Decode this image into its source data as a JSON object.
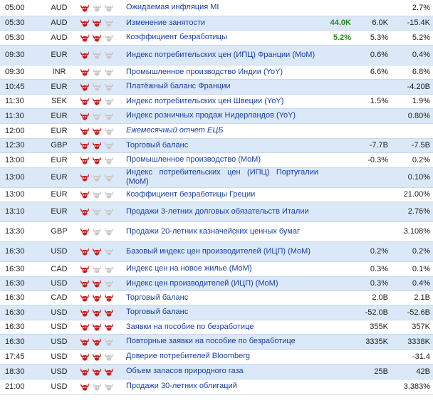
{
  "impact_colors": {
    "active": "#c81e1e",
    "inactive": "#c8c8c8"
  },
  "rows": [
    {
      "time": "05:00",
      "currency": "AUD",
      "impact": 1,
      "event": "Ожидаемая инфляция MI",
      "actual": "",
      "forecast": "",
      "previous": "2.7%"
    },
    {
      "time": "05:30",
      "currency": "AUD",
      "impact": 2,
      "event": "Изменение занятости",
      "actual": "44.0K",
      "forecast": "6.0K",
      "previous": "-15.4K"
    },
    {
      "time": "05:30",
      "currency": "AUD",
      "impact": 2,
      "event": "Коэффициент безработицы",
      "actual": "5.2%",
      "forecast": "5.3%",
      "previous": "5.2%"
    },
    {
      "time": "09:30",
      "currency": "EUR",
      "impact": 1,
      "event": "Индекс потребительских цен (ИПЦ) Франции (MoM)",
      "actual": "",
      "forecast": "0.6%",
      "previous": "0.4%"
    },
    {
      "time": "09:30",
      "currency": "INR",
      "impact": 1,
      "event": "Промышленное производство Индии (YoY)",
      "actual": "",
      "forecast": "6.6%",
      "previous": "6.8%"
    },
    {
      "time": "10:45",
      "currency": "EUR",
      "impact": 1,
      "event": "Платёжный баланс Франции",
      "actual": "",
      "forecast": "",
      "previous": "-4.20B"
    },
    {
      "time": "11:30",
      "currency": "SEK",
      "impact": 2,
      "event": "Индекс потребительских цен Швеции (YoY)",
      "actual": "",
      "forecast": "1.5%",
      "previous": "1.9%"
    },
    {
      "time": "11:30",
      "currency": "EUR",
      "impact": 1,
      "event": "Индекс розничных продаж Нидерландов (YoY)",
      "actual": "",
      "forecast": "",
      "previous": "0.80%"
    },
    {
      "time": "12:00",
      "currency": "EUR",
      "impact": 2,
      "event": "Ежемесячный отчет ЕЦБ",
      "actual": "",
      "forecast": "",
      "previous": "",
      "italic": true
    },
    {
      "time": "12:30",
      "currency": "GBP",
      "impact": 2,
      "event": "Торговый баланс",
      "actual": "",
      "forecast": "-7.7B",
      "previous": "-7.5B"
    },
    {
      "time": "13:00",
      "currency": "EUR",
      "impact": 2,
      "event": "Промышленное производство (MoM)",
      "actual": "",
      "forecast": "-0.3%",
      "previous": "0.2%"
    },
    {
      "time": "13:00",
      "currency": "EUR",
      "impact": 1,
      "event": "Индекс потребительских цен (ИПЦ) Португалии (MoM)",
      "actual": "",
      "forecast": "",
      "previous": "0.10%"
    },
    {
      "time": "13:00",
      "currency": "EUR",
      "impact": 1,
      "event": "Коэффициент безработицы Греции",
      "actual": "",
      "forecast": "",
      "previous": "21.00%"
    },
    {
      "time": "13:10",
      "currency": "EUR",
      "impact": 1,
      "event": "Продажи 3-летних долговых обязательств Италии",
      "actual": "",
      "forecast": "",
      "previous": "2.76%"
    },
    {
      "time": "13:30",
      "currency": "GBP",
      "impact": 1,
      "event": "Продажи 20-летних казначейских ценных бумаг",
      "actual": "",
      "forecast": "",
      "previous": "3.108%"
    },
    {
      "time": "16:30",
      "currency": "USD",
      "impact": 2,
      "event": "Базовый индекс цен производителей (ИЦП) (MoM)",
      "actual": "",
      "forecast": "0.2%",
      "previous": "0.2%"
    },
    {
      "time": "16:30",
      "currency": "CAD",
      "impact": 1,
      "event": "Индекс цен на новое жилье (MoM)",
      "actual": "",
      "forecast": "0.3%",
      "previous": "0.1%"
    },
    {
      "time": "16:30",
      "currency": "USD",
      "impact": 2,
      "event": "Индекс цен производителей (ИЦП) (MoM)",
      "actual": "",
      "forecast": "0.3%",
      "previous": "0.4%"
    },
    {
      "time": "16:30",
      "currency": "CAD",
      "impact": 3,
      "event": "Торговый баланс",
      "actual": "",
      "forecast": "2.0B",
      "previous": "2.1B"
    },
    {
      "time": "16:30",
      "currency": "USD",
      "impact": 3,
      "event": "Торговый баланс",
      "actual": "",
      "forecast": "-52.0B",
      "previous": "-52.6B"
    },
    {
      "time": "16:30",
      "currency": "USD",
      "impact": 3,
      "event": "Заявки на пособие по безработице",
      "actual": "",
      "forecast": "355K",
      "previous": "357K"
    },
    {
      "time": "16:30",
      "currency": "USD",
      "impact": 2,
      "event": "Повторные заявки на пособие по безработице",
      "actual": "",
      "forecast": "3335K",
      "previous": "3338K"
    },
    {
      "time": "17:45",
      "currency": "USD",
      "impact": 2,
      "event": "Доверие потребителей Bloomberg",
      "actual": "",
      "forecast": "",
      "previous": "-31.4"
    },
    {
      "time": "18:30",
      "currency": "USD",
      "impact": 3,
      "event": "Объем запасов природного газа",
      "actual": "",
      "forecast": "25B",
      "previous": "42B"
    },
    {
      "time": "21:00",
      "currency": "USD",
      "impact": 1,
      "event": "Продажи 30-летних облигаций",
      "actual": "",
      "forecast": "",
      "previous": "3.383%"
    }
  ]
}
